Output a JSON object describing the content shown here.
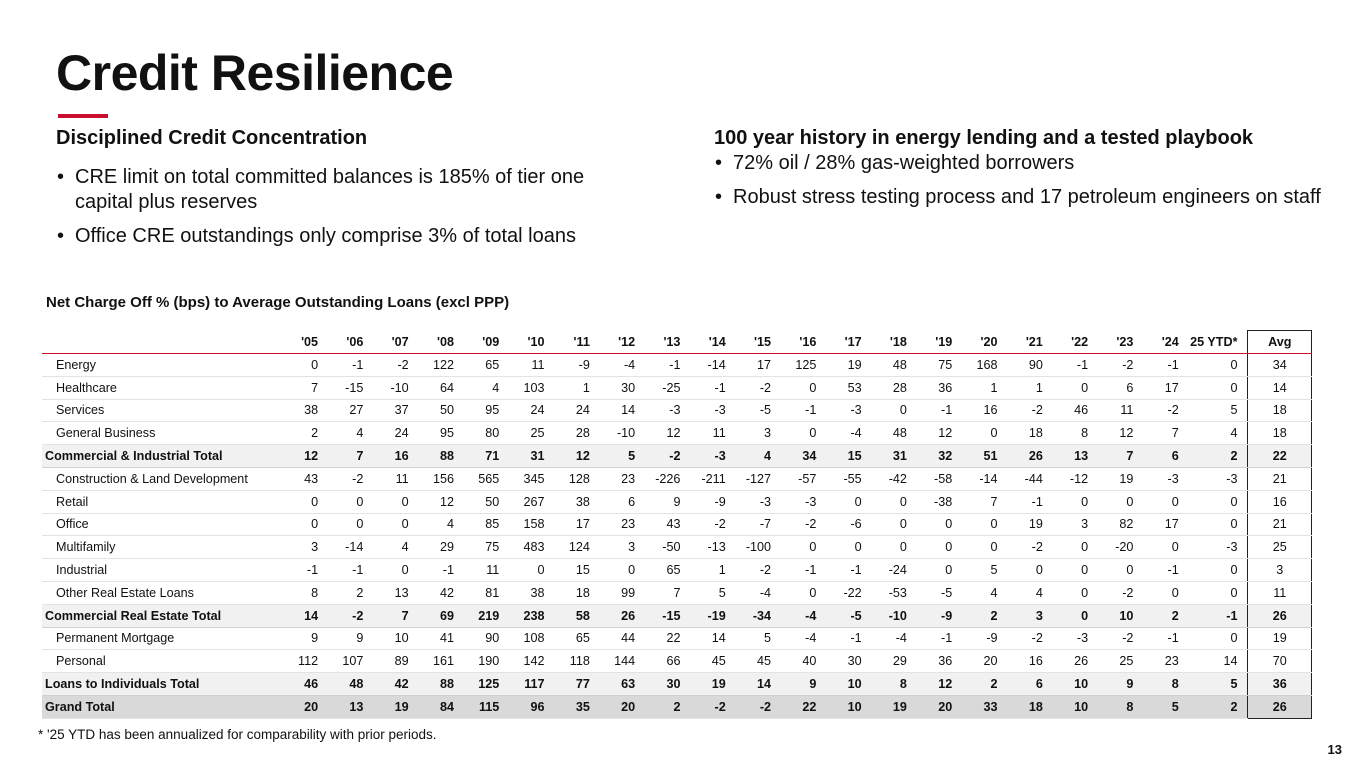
{
  "title": "Credit Resilience",
  "left": {
    "heading": "Disciplined Credit Concentration",
    "bullets": [
      "CRE limit on total committed balances is 185% of tier one capital plus reserves",
      "Office CRE outstandings only comprise 3% of total loans"
    ]
  },
  "right": {
    "heading": "100 year history in energy lending and a tested playbook",
    "bullets": [
      "72% oil / 28% gas-weighted borrowers",
      "Robust stress testing process and 17 petroleum engineers on staff"
    ]
  },
  "bullet_glyph": "•",
  "table": {
    "title": "Net Charge Off % (bps) to Average Outstanding Loans (excl PPP)",
    "columns": [
      "'05",
      "'06",
      "'07",
      "'08",
      "'09",
      "'10",
      "'11",
      "'12",
      "'13",
      "'14",
      "'15",
      "'16",
      "'17",
      "'18",
      "'19",
      "'20",
      "'21",
      "'22",
      "'23",
      "'24",
      "25 YTD*",
      "Avg"
    ],
    "rows": [
      {
        "label": "Energy",
        "type": "item",
        "values": [
          "0",
          "-1",
          "-2",
          "122",
          "65",
          "11",
          "-9",
          "-4",
          "-1",
          "-14",
          "17",
          "125",
          "19",
          "48",
          "75",
          "168",
          "90",
          "-1",
          "-2",
          "-1",
          "0",
          "34"
        ]
      },
      {
        "label": "Healthcare",
        "type": "item",
        "values": [
          "7",
          "-15",
          "-10",
          "64",
          "4",
          "103",
          "1",
          "30",
          "-25",
          "-1",
          "-2",
          "0",
          "53",
          "28",
          "36",
          "1",
          "1",
          "0",
          "6",
          "17",
          "0",
          "14"
        ]
      },
      {
        "label": "Services",
        "type": "item",
        "values": [
          "38",
          "27",
          "37",
          "50",
          "95",
          "24",
          "24",
          "14",
          "-3",
          "-3",
          "-5",
          "-1",
          "-3",
          "0",
          "-1",
          "16",
          "-2",
          "46",
          "11",
          "-2",
          "5",
          "18"
        ]
      },
      {
        "label": "General Business",
        "type": "item",
        "values": [
          "2",
          "4",
          "24",
          "95",
          "80",
          "25",
          "28",
          "-10",
          "12",
          "11",
          "3",
          "0",
          "-4",
          "48",
          "12",
          "0",
          "18",
          "8",
          "12",
          "7",
          "4",
          "18"
        ]
      },
      {
        "label": "Commercial & Industrial Total",
        "type": "total",
        "values": [
          "12",
          "7",
          "16",
          "88",
          "71",
          "31",
          "12",
          "5",
          "-2",
          "-3",
          "4",
          "34",
          "15",
          "31",
          "32",
          "51",
          "26",
          "13",
          "7",
          "6",
          "2",
          "22"
        ]
      },
      {
        "label": "Construction & Land Development",
        "type": "item",
        "values": [
          "43",
          "-2",
          "11",
          "156",
          "565",
          "345",
          "128",
          "23",
          "-226",
          "-211",
          "-127",
          "-57",
          "-55",
          "-42",
          "-58",
          "-14",
          "-44",
          "-12",
          "19",
          "-3",
          "-3",
          "21"
        ]
      },
      {
        "label": "Retail",
        "type": "item",
        "values": [
          "0",
          "0",
          "0",
          "12",
          "50",
          "267",
          "38",
          "6",
          "9",
          "-9",
          "-3",
          "-3",
          "0",
          "0",
          "-38",
          "7",
          "-1",
          "0",
          "0",
          "0",
          "0",
          "16"
        ]
      },
      {
        "label": "Office",
        "type": "item",
        "values": [
          "0",
          "0",
          "0",
          "4",
          "85",
          "158",
          "17",
          "23",
          "43",
          "-2",
          "-7",
          "-2",
          "-6",
          "0",
          "0",
          "0",
          "19",
          "3",
          "82",
          "17",
          "0",
          "21"
        ]
      },
      {
        "label": "Multifamily",
        "type": "item",
        "values": [
          "3",
          "-14",
          "4",
          "29",
          "75",
          "483",
          "124",
          "3",
          "-50",
          "-13",
          "-100",
          "0",
          "0",
          "0",
          "0",
          "0",
          "-2",
          "0",
          "-20",
          "0",
          "-3",
          "25"
        ]
      },
      {
        "label": "Industrial",
        "type": "item",
        "values": [
          "-1",
          "-1",
          "0",
          "-1",
          "11",
          "0",
          "15",
          "0",
          "65",
          "1",
          "-2",
          "-1",
          "-1",
          "-24",
          "0",
          "5",
          "0",
          "0",
          "0",
          "-1",
          "0",
          "3"
        ]
      },
      {
        "label": "Other Real Estate Loans",
        "type": "item",
        "values": [
          "8",
          "2",
          "13",
          "42",
          "81",
          "38",
          "18",
          "99",
          "7",
          "5",
          "-4",
          "0",
          "-22",
          "-53",
          "-5",
          "4",
          "4",
          "0",
          "-2",
          "0",
          "0",
          "11"
        ]
      },
      {
        "label": "Commercial Real Estate Total",
        "type": "total",
        "values": [
          "14",
          "-2",
          "7",
          "69",
          "219",
          "238",
          "58",
          "26",
          "-15",
          "-19",
          "-34",
          "-4",
          "-5",
          "-10",
          "-9",
          "2",
          "3",
          "0",
          "10",
          "2",
          "-1",
          "26"
        ]
      },
      {
        "label": "Permanent Mortgage",
        "type": "item",
        "values": [
          "9",
          "9",
          "10",
          "41",
          "90",
          "108",
          "65",
          "44",
          "22",
          "14",
          "5",
          "-4",
          "-1",
          "-4",
          "-1",
          "-9",
          "-2",
          "-3",
          "-2",
          "-1",
          "0",
          "19"
        ]
      },
      {
        "label": "Personal",
        "type": "item",
        "values": [
          "112",
          "107",
          "89",
          "161",
          "190",
          "142",
          "118",
          "144",
          "66",
          "45",
          "45",
          "40",
          "30",
          "29",
          "36",
          "20",
          "16",
          "26",
          "25",
          "23",
          "14",
          "70"
        ]
      },
      {
        "label": "Loans to Individuals Total",
        "type": "total",
        "values": [
          "46",
          "48",
          "42",
          "88",
          "125",
          "117",
          "77",
          "63",
          "30",
          "19",
          "14",
          "9",
          "10",
          "8",
          "12",
          "2",
          "6",
          "10",
          "9",
          "8",
          "5",
          "36"
        ]
      },
      {
        "label": "Grand Total",
        "type": "grand",
        "values": [
          "20",
          "13",
          "19",
          "84",
          "115",
          "96",
          "35",
          "20",
          "2",
          "-2",
          "-2",
          "22",
          "10",
          "19",
          "20",
          "33",
          "18",
          "10",
          "8",
          "5",
          "2",
          "26"
        ]
      }
    ]
  },
  "footnote": "* '25 YTD has been annualized for comparability with prior periods.",
  "page_number": "13",
  "colors": {
    "accent": "#c8102e",
    "total_row": "#f1f1f1",
    "grand_row": "#d9d9d9"
  }
}
